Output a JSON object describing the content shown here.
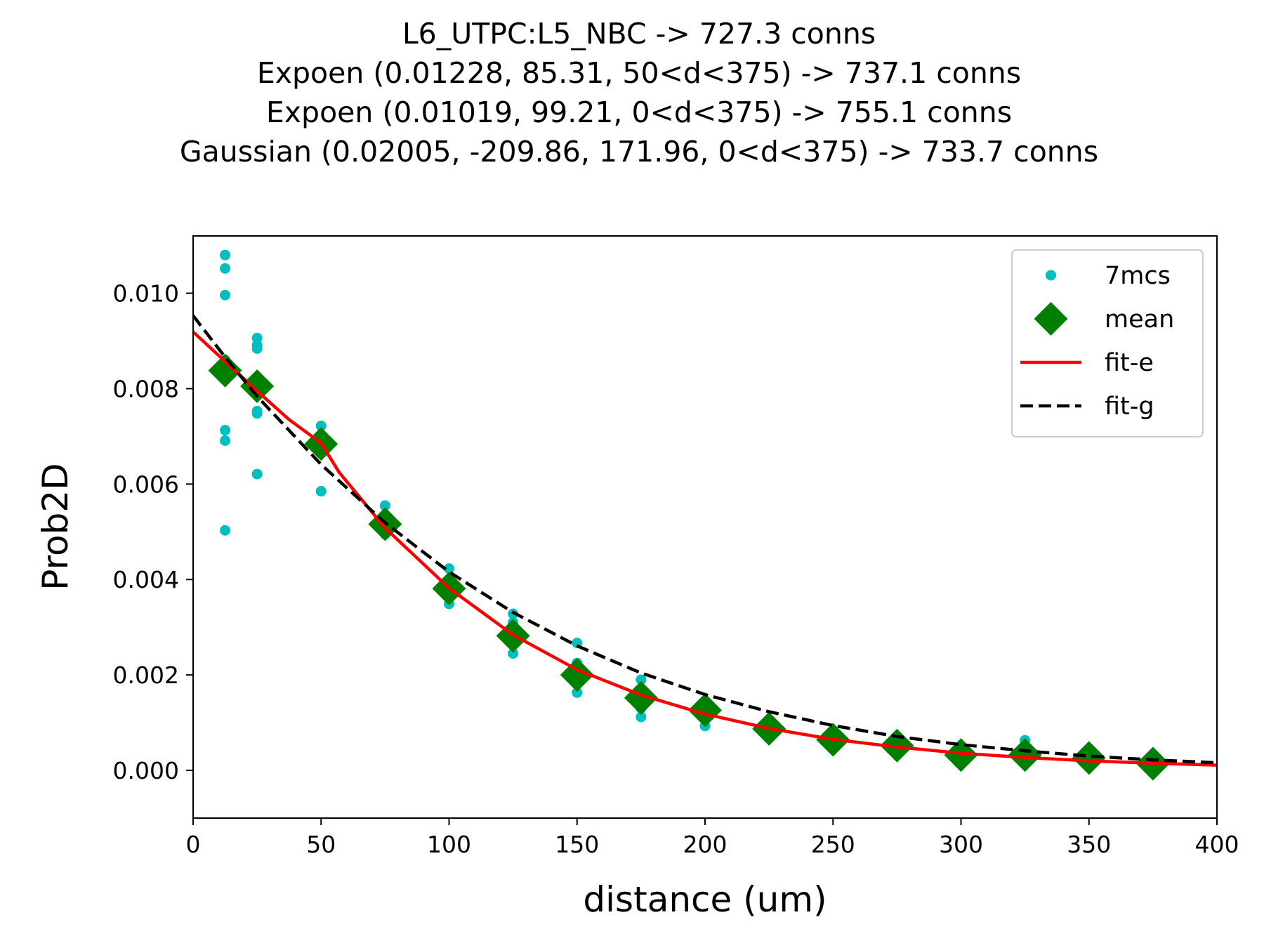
{
  "chart_data": {
    "type": "scatter",
    "title_lines": [
      "L6_UTPC:L5_NBC -> 727.3 conns",
      "Expoen (0.01228, 85.31, 50<d<375) -> 737.1 conns",
      "Expoen (0.01019, 99.21, 0<d<375) -> 755.1 conns",
      "Gaussian (0.02005, -209.86, 171.96, 0<d<375) -> 733.7 conns"
    ],
    "xlabel": "distance (um)",
    "ylabel": "Prob2D",
    "xlim": [
      0,
      400
    ],
    "ylim": [
      -0.001,
      0.0112
    ],
    "xticks": [
      0,
      50,
      100,
      150,
      200,
      250,
      300,
      350,
      400
    ],
    "xtick_labels": [
      "0",
      "50",
      "100",
      "150",
      "200",
      "250",
      "300",
      "350",
      "400"
    ],
    "yticks": [
      0.0,
      0.002,
      0.004,
      0.006,
      0.008,
      0.01
    ],
    "ytick_labels": [
      "0.000",
      "0.002",
      "0.004",
      "0.006",
      "0.008",
      "0.010"
    ],
    "grid": false,
    "legend_position": "top-right",
    "legend": [
      {
        "label": "7mcs",
        "kind": "dot",
        "color": "#00bfbf"
      },
      {
        "label": "mean",
        "kind": "diamond",
        "color": "#008000"
      },
      {
        "label": "fit-e",
        "kind": "solid-line",
        "color": "#ff0000"
      },
      {
        "label": "fit-g",
        "kind": "dashed-line",
        "color": "#000000"
      }
    ],
    "samples": {
      "x": [
        12.5,
        12.5,
        12.5,
        12.5,
        12.5,
        12.5,
        12.5,
        25,
        25,
        25,
        25,
        25,
        25,
        25,
        50,
        50,
        50,
        50,
        50,
        50,
        50,
        75,
        75,
        75,
        75,
        75,
        75,
        75,
        100,
        100,
        100,
        100,
        100,
        100,
        100,
        125,
        125,
        125,
        125,
        125,
        125,
        125,
        150,
        150,
        150,
        150,
        150,
        150,
        150,
        175,
        175,
        175,
        175,
        175,
        175,
        175,
        200,
        200,
        200,
        200,
        200,
        200,
        200,
        225,
        225,
        225,
        225,
        225,
        225,
        225,
        250,
        250,
        250,
        250,
        250,
        250,
        250,
        275,
        275,
        275,
        275,
        275,
        275,
        275,
        300,
        300,
        300,
        300,
        300,
        300,
        300,
        325,
        325,
        325,
        325,
        325,
        325,
        325,
        350,
        350,
        350,
        350,
        350,
        350,
        350,
        375,
        375,
        375,
        375,
        375,
        375,
        375
      ],
      "y": [
        0.0108,
        0.01052,
        0.00996,
        0.00713,
        0.00691,
        0.00503,
        0.0086,
        0.00906,
        0.00891,
        0.00884,
        0.00753,
        0.00748,
        0.00621,
        0.008,
        0.00722,
        0.00702,
        0.00688,
        0.0068,
        0.0067,
        0.00585,
        0.0069,
        0.00555,
        0.0053,
        0.0052,
        0.0051,
        0.005,
        0.00495,
        0.0052,
        0.00423,
        0.004,
        0.0038,
        0.0037,
        0.0036,
        0.00349,
        0.0039,
        0.00328,
        0.0031,
        0.0029,
        0.0028,
        0.00265,
        0.00245,
        0.003,
        0.00267,
        0.00225,
        0.0021,
        0.002,
        0.00185,
        0.00163,
        0.0019,
        0.0019,
        0.0017,
        0.00155,
        0.00145,
        0.0013,
        0.00112,
        0.0016,
        0.00145,
        0.00135,
        0.00125,
        0.0012,
        0.0011,
        0.00093,
        0.0013,
        0.001,
        0.00095,
        0.0009,
        0.00085,
        0.0008,
        0.00075,
        0.0009,
        0.0008,
        0.00075,
        0.0007,
        0.00065,
        0.0006,
        0.00055,
        0.0007,
        0.00065,
        0.0006,
        0.00055,
        0.0005,
        0.00045,
        0.0004,
        0.0006,
        0.0005,
        0.00045,
        0.0004,
        0.00035,
        0.0003,
        0.00025,
        0.0004,
        0.00063,
        0.00045,
        0.0004,
        0.00035,
        0.0003,
        0.00025,
        0.0003,
        0.0004,
        0.00035,
        0.0003,
        0.00025,
        0.0002,
        0.00015,
        0.0003,
        0.0003,
        0.00025,
        0.0002,
        0.00015,
        0.0001,
        5e-05,
        0.0002
      ]
    },
    "mean": {
      "x": [
        12.5,
        25,
        50,
        75,
        100,
        125,
        150,
        175,
        200,
        225,
        250,
        275,
        300,
        325,
        350,
        375
      ],
      "y": [
        0.00838,
        0.00805,
        0.00684,
        0.00516,
        0.00381,
        0.00282,
        0.002,
        0.00152,
        0.00126,
        0.00087,
        0.00064,
        0.00052,
        0.00032,
        0.00032,
        0.00026,
        0.00014
      ]
    },
    "fit_e": {
      "x": [
        0,
        12.5,
        25,
        37.5,
        50,
        57,
        75,
        100,
        125,
        150,
        175,
        200,
        225,
        250,
        275,
        300,
        325,
        350,
        375,
        400
      ],
      "y": [
        0.00919,
        0.00857,
        0.00795,
        0.00735,
        0.00686,
        0.00625,
        0.00508,
        0.00382,
        0.00284,
        0.00211,
        0.00158,
        0.00118,
        0.00088,
        0.00065,
        0.00049,
        0.00036,
        0.00027,
        0.0002,
        0.00015,
        0.00011
      ]
    },
    "fit_g": {
      "x": [
        0,
        12.5,
        25,
        50,
        75,
        100,
        125,
        150,
        175,
        200,
        225,
        250,
        275,
        300,
        325,
        350,
        375,
        400
      ],
      "y": [
        0.00953,
        0.00866,
        0.00784,
        0.00641,
        0.00519,
        0.00416,
        0.00331,
        0.00261,
        0.00204,
        0.00159,
        0.00123,
        0.00094,
        0.00071,
        0.00054,
        0.00041,
        0.0003,
        0.00022,
        0.00016
      ]
    }
  }
}
